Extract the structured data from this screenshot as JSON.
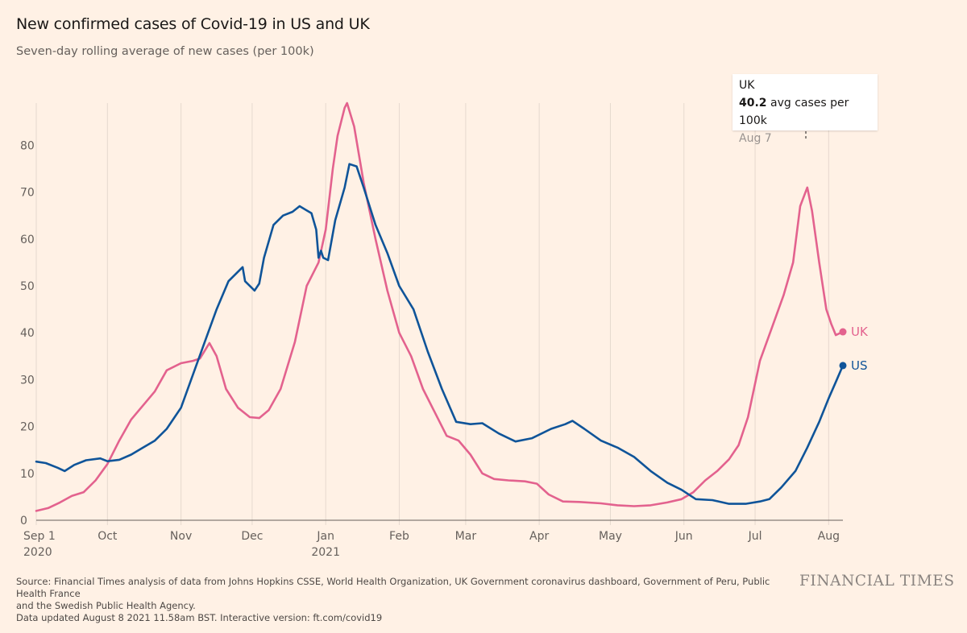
{
  "header": {
    "title": "New confirmed cases of Covid-19 in US and UK",
    "subtitle": "Seven-day rolling average of new cases (per 100k)"
  },
  "tooltip": {
    "title": "UK",
    "value": "40.2",
    "value_suffix": " avg cases per 100k",
    "date": "Aug 7"
  },
  "footer": {
    "source_line1": "Source: Financial Times analysis of data from Johns Hopkins CSSE, World Health Organization, UK Government coronavirus dashboard, Government of Peru, Public Health France",
    "source_line2": "and the Swedish Public Health Agency.",
    "source_line3": "Data updated August 8 2021 11.58am BST. Interactive version: ft.com/covid19",
    "logo": "FINANCIAL TIMES"
  },
  "chart_data": {
    "type": "line",
    "title": "New confirmed cases of Covid-19 in US and UK",
    "subtitle": "Seven-day rolling average of new cases (per 100k)",
    "ylim": [
      0,
      89
    ],
    "yticks": [
      0,
      10,
      20,
      30,
      40,
      50,
      60,
      70,
      80
    ],
    "xlim": [
      "2020-09-01",
      "2021-08-07"
    ],
    "xticks": [
      {
        "date": "2020-09-01",
        "label": "Sep 1",
        "sublabel": "2020"
      },
      {
        "date": "2020-10-01",
        "label": "Oct",
        "sublabel": ""
      },
      {
        "date": "2020-11-01",
        "label": "Nov",
        "sublabel": ""
      },
      {
        "date": "2020-12-01",
        "label": "Dec",
        "sublabel": ""
      },
      {
        "date": "2021-01-01",
        "label": "Jan",
        "sublabel": "2021"
      },
      {
        "date": "2021-02-01",
        "label": "Feb",
        "sublabel": ""
      },
      {
        "date": "2021-03-01",
        "label": "Mar",
        "sublabel": ""
      },
      {
        "date": "2021-04-01",
        "label": "Apr",
        "sublabel": ""
      },
      {
        "date": "2021-05-01",
        "label": "May",
        "sublabel": ""
      },
      {
        "date": "2021-06-01",
        "label": "Jun",
        "sublabel": ""
      },
      {
        "date": "2021-07-01",
        "label": "Jul",
        "sublabel": ""
      },
      {
        "date": "2021-08-01",
        "label": "Aug",
        "sublabel": ""
      }
    ],
    "grid": "vertical",
    "series": [
      {
        "name": "US",
        "color": "#0f5499",
        "end_label": "US",
        "points": [
          [
            "2020-09-01",
            12.5
          ],
          [
            "2020-09-05",
            12.2
          ],
          [
            "2020-09-10",
            11.2
          ],
          [
            "2020-09-13",
            10.5
          ],
          [
            "2020-09-17",
            11.8
          ],
          [
            "2020-09-22",
            12.8
          ],
          [
            "2020-09-28",
            13.2
          ],
          [
            "2020-10-01",
            12.6
          ],
          [
            "2020-10-06",
            12.9
          ],
          [
            "2020-10-11",
            14.0
          ],
          [
            "2020-10-16",
            15.5
          ],
          [
            "2020-10-21",
            17.0
          ],
          [
            "2020-10-26",
            19.5
          ],
          [
            "2020-11-01",
            24.0
          ],
          [
            "2020-11-06",
            31.0
          ],
          [
            "2020-11-11",
            38.0
          ],
          [
            "2020-11-16",
            45.0
          ],
          [
            "2020-11-21",
            51.0
          ],
          [
            "2020-11-27",
            54.0
          ],
          [
            "2020-11-28",
            51.0
          ],
          [
            "2020-12-02",
            49.0
          ],
          [
            "2020-12-04",
            50.5
          ],
          [
            "2020-12-06",
            56.0
          ],
          [
            "2020-12-10",
            63.0
          ],
          [
            "2020-12-14",
            65.0
          ],
          [
            "2020-12-18",
            65.8
          ],
          [
            "2020-12-21",
            67.0
          ],
          [
            "2020-12-26",
            65.5
          ],
          [
            "2020-12-28",
            62.0
          ],
          [
            "2020-12-29",
            56.0
          ],
          [
            "2020-12-30",
            57.5
          ],
          [
            "2020-12-31",
            56.0
          ],
          [
            "2021-01-02",
            55.5
          ],
          [
            "2021-01-05",
            64.0
          ],
          [
            "2021-01-09",
            71.0
          ],
          [
            "2021-01-11",
            76.0
          ],
          [
            "2021-01-14",
            75.5
          ],
          [
            "2021-01-17",
            71.0
          ],
          [
            "2021-01-22",
            63.0
          ],
          [
            "2021-01-27",
            57.0
          ],
          [
            "2021-02-01",
            50.0
          ],
          [
            "2021-02-07",
            45.0
          ],
          [
            "2021-02-13",
            36.0
          ],
          [
            "2021-02-19",
            28.0
          ],
          [
            "2021-02-25",
            21.0
          ],
          [
            "2021-03-03",
            20.5
          ],
          [
            "2021-03-08",
            20.7
          ],
          [
            "2021-03-15",
            18.5
          ],
          [
            "2021-03-22",
            16.8
          ],
          [
            "2021-03-29",
            17.5
          ],
          [
            "2021-04-06",
            19.5
          ],
          [
            "2021-04-12",
            20.5
          ],
          [
            "2021-04-15",
            21.2
          ],
          [
            "2021-04-20",
            19.5
          ],
          [
            "2021-04-27",
            17.0
          ],
          [
            "2021-05-04",
            15.5
          ],
          [
            "2021-05-11",
            13.5
          ],
          [
            "2021-05-18",
            10.5
          ],
          [
            "2021-05-25",
            8.0
          ],
          [
            "2021-05-31",
            6.5
          ],
          [
            "2021-06-06",
            4.5
          ],
          [
            "2021-06-13",
            4.3
          ],
          [
            "2021-06-20",
            3.5
          ],
          [
            "2021-06-27",
            3.5
          ],
          [
            "2021-07-03",
            4.0
          ],
          [
            "2021-07-07",
            4.5
          ],
          [
            "2021-07-12",
            7.0
          ],
          [
            "2021-07-18",
            10.5
          ],
          [
            "2021-07-23",
            15.5
          ],
          [
            "2021-07-28",
            21.0
          ],
          [
            "2021-08-01",
            26.0
          ],
          [
            "2021-08-04",
            29.5
          ],
          [
            "2021-08-07",
            33.0
          ]
        ]
      },
      {
        "name": "UK",
        "color": "#e3628e",
        "end_label": "UK",
        "points": [
          [
            "2020-09-01",
            2.0
          ],
          [
            "2020-09-06",
            2.6
          ],
          [
            "2020-09-11",
            3.8
          ],
          [
            "2020-09-16",
            5.2
          ],
          [
            "2020-09-21",
            6.0
          ],
          [
            "2020-09-26",
            8.5
          ],
          [
            "2020-10-01",
            12.0
          ],
          [
            "2020-10-06",
            17.0
          ],
          [
            "2020-10-11",
            21.5
          ],
          [
            "2020-10-16",
            24.5
          ],
          [
            "2020-10-21",
            27.5
          ],
          [
            "2020-10-26",
            32.0
          ],
          [
            "2020-11-01",
            33.5
          ],
          [
            "2020-11-06",
            34.0
          ],
          [
            "2020-11-09",
            34.5
          ],
          [
            "2020-11-13",
            37.8
          ],
          [
            "2020-11-16",
            35.0
          ],
          [
            "2020-11-20",
            28.0
          ],
          [
            "2020-11-25",
            24.0
          ],
          [
            "2020-11-30",
            22.0
          ],
          [
            "2020-12-04",
            21.8
          ],
          [
            "2020-12-08",
            23.5
          ],
          [
            "2020-12-13",
            28.0
          ],
          [
            "2020-12-19",
            38.0
          ],
          [
            "2020-12-24",
            50.0
          ],
          [
            "2020-12-29",
            55.0
          ],
          [
            "2021-01-01",
            62.0
          ],
          [
            "2021-01-04",
            75.0
          ],
          [
            "2021-01-06",
            82.0
          ],
          [
            "2021-01-09",
            88.0
          ],
          [
            "2021-01-10",
            89.0
          ],
          [
            "2021-01-13",
            84.0
          ],
          [
            "2021-01-17",
            72.0
          ],
          [
            "2021-01-22",
            60.0
          ],
          [
            "2021-01-27",
            49.0
          ],
          [
            "2021-02-01",
            40.0
          ],
          [
            "2021-02-06",
            35.0
          ],
          [
            "2021-02-11",
            28.0
          ],
          [
            "2021-02-16",
            23.0
          ],
          [
            "2021-02-21",
            18.0
          ],
          [
            "2021-02-26",
            17.0
          ],
          [
            "2021-03-03",
            14.0
          ],
          [
            "2021-03-08",
            10.0
          ],
          [
            "2021-03-13",
            8.8
          ],
          [
            "2021-03-19",
            8.5
          ],
          [
            "2021-03-26",
            8.3
          ],
          [
            "2021-03-31",
            7.8
          ],
          [
            "2021-04-05",
            5.5
          ],
          [
            "2021-04-11",
            4.0
          ],
          [
            "2021-04-18",
            3.9
          ],
          [
            "2021-04-27",
            3.6
          ],
          [
            "2021-05-04",
            3.2
          ],
          [
            "2021-05-11",
            3.0
          ],
          [
            "2021-05-18",
            3.2
          ],
          [
            "2021-05-25",
            3.8
          ],
          [
            "2021-05-31",
            4.5
          ],
          [
            "2021-06-05",
            6.0
          ],
          [
            "2021-06-10",
            8.5
          ],
          [
            "2021-06-15",
            10.5
          ],
          [
            "2021-06-20",
            13.0
          ],
          [
            "2021-06-24",
            16.0
          ],
          [
            "2021-06-28",
            22.0
          ],
          [
            "2021-07-03",
            34.0
          ],
          [
            "2021-07-08",
            41.0
          ],
          [
            "2021-07-13",
            48.0
          ],
          [
            "2021-07-17",
            55.0
          ],
          [
            "2021-07-20",
            67.0
          ],
          [
            "2021-07-23",
            71.0
          ],
          [
            "2021-07-25",
            66.0
          ],
          [
            "2021-07-28",
            55.0
          ],
          [
            "2021-07-31",
            45.0
          ],
          [
            "2021-08-02",
            42.0
          ],
          [
            "2021-08-04",
            39.5
          ],
          [
            "2021-08-07",
            40.2
          ]
        ]
      }
    ]
  }
}
